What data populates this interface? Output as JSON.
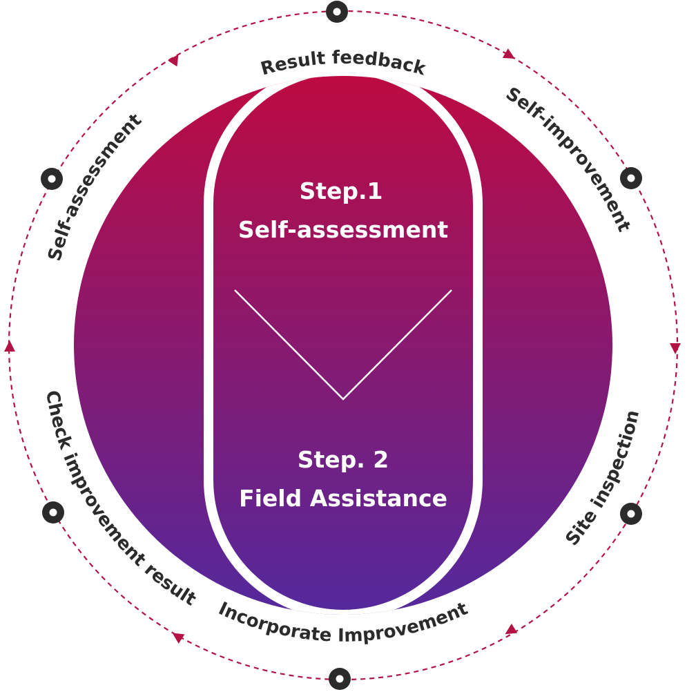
{
  "steps": {
    "step1": {
      "label": "Step.1",
      "title": "Self-assessment"
    },
    "step2": {
      "label": "Step. 2",
      "title": "Field Assistance"
    }
  },
  "cycle": {
    "labels": {
      "result_feedback": "Result feedback",
      "self_improvement": "Self-improvement",
      "site_inspection": "Site inspection",
      "incorporate_improvement": "Incorporate Improvement",
      "check_improvement_result": "Check improvement result",
      "self_assessment": "Self-assessment"
    },
    "node_count": 6,
    "arrow_direction": "clockwise"
  },
  "colors": {
    "gradient_top": "#bd0a41",
    "gradient_bottom": "#53299d",
    "ring_dash": "#b31244",
    "node_dark": "#2b2b2b",
    "text_dark": "#2b2b2b",
    "text_light": "#ffffff"
  }
}
